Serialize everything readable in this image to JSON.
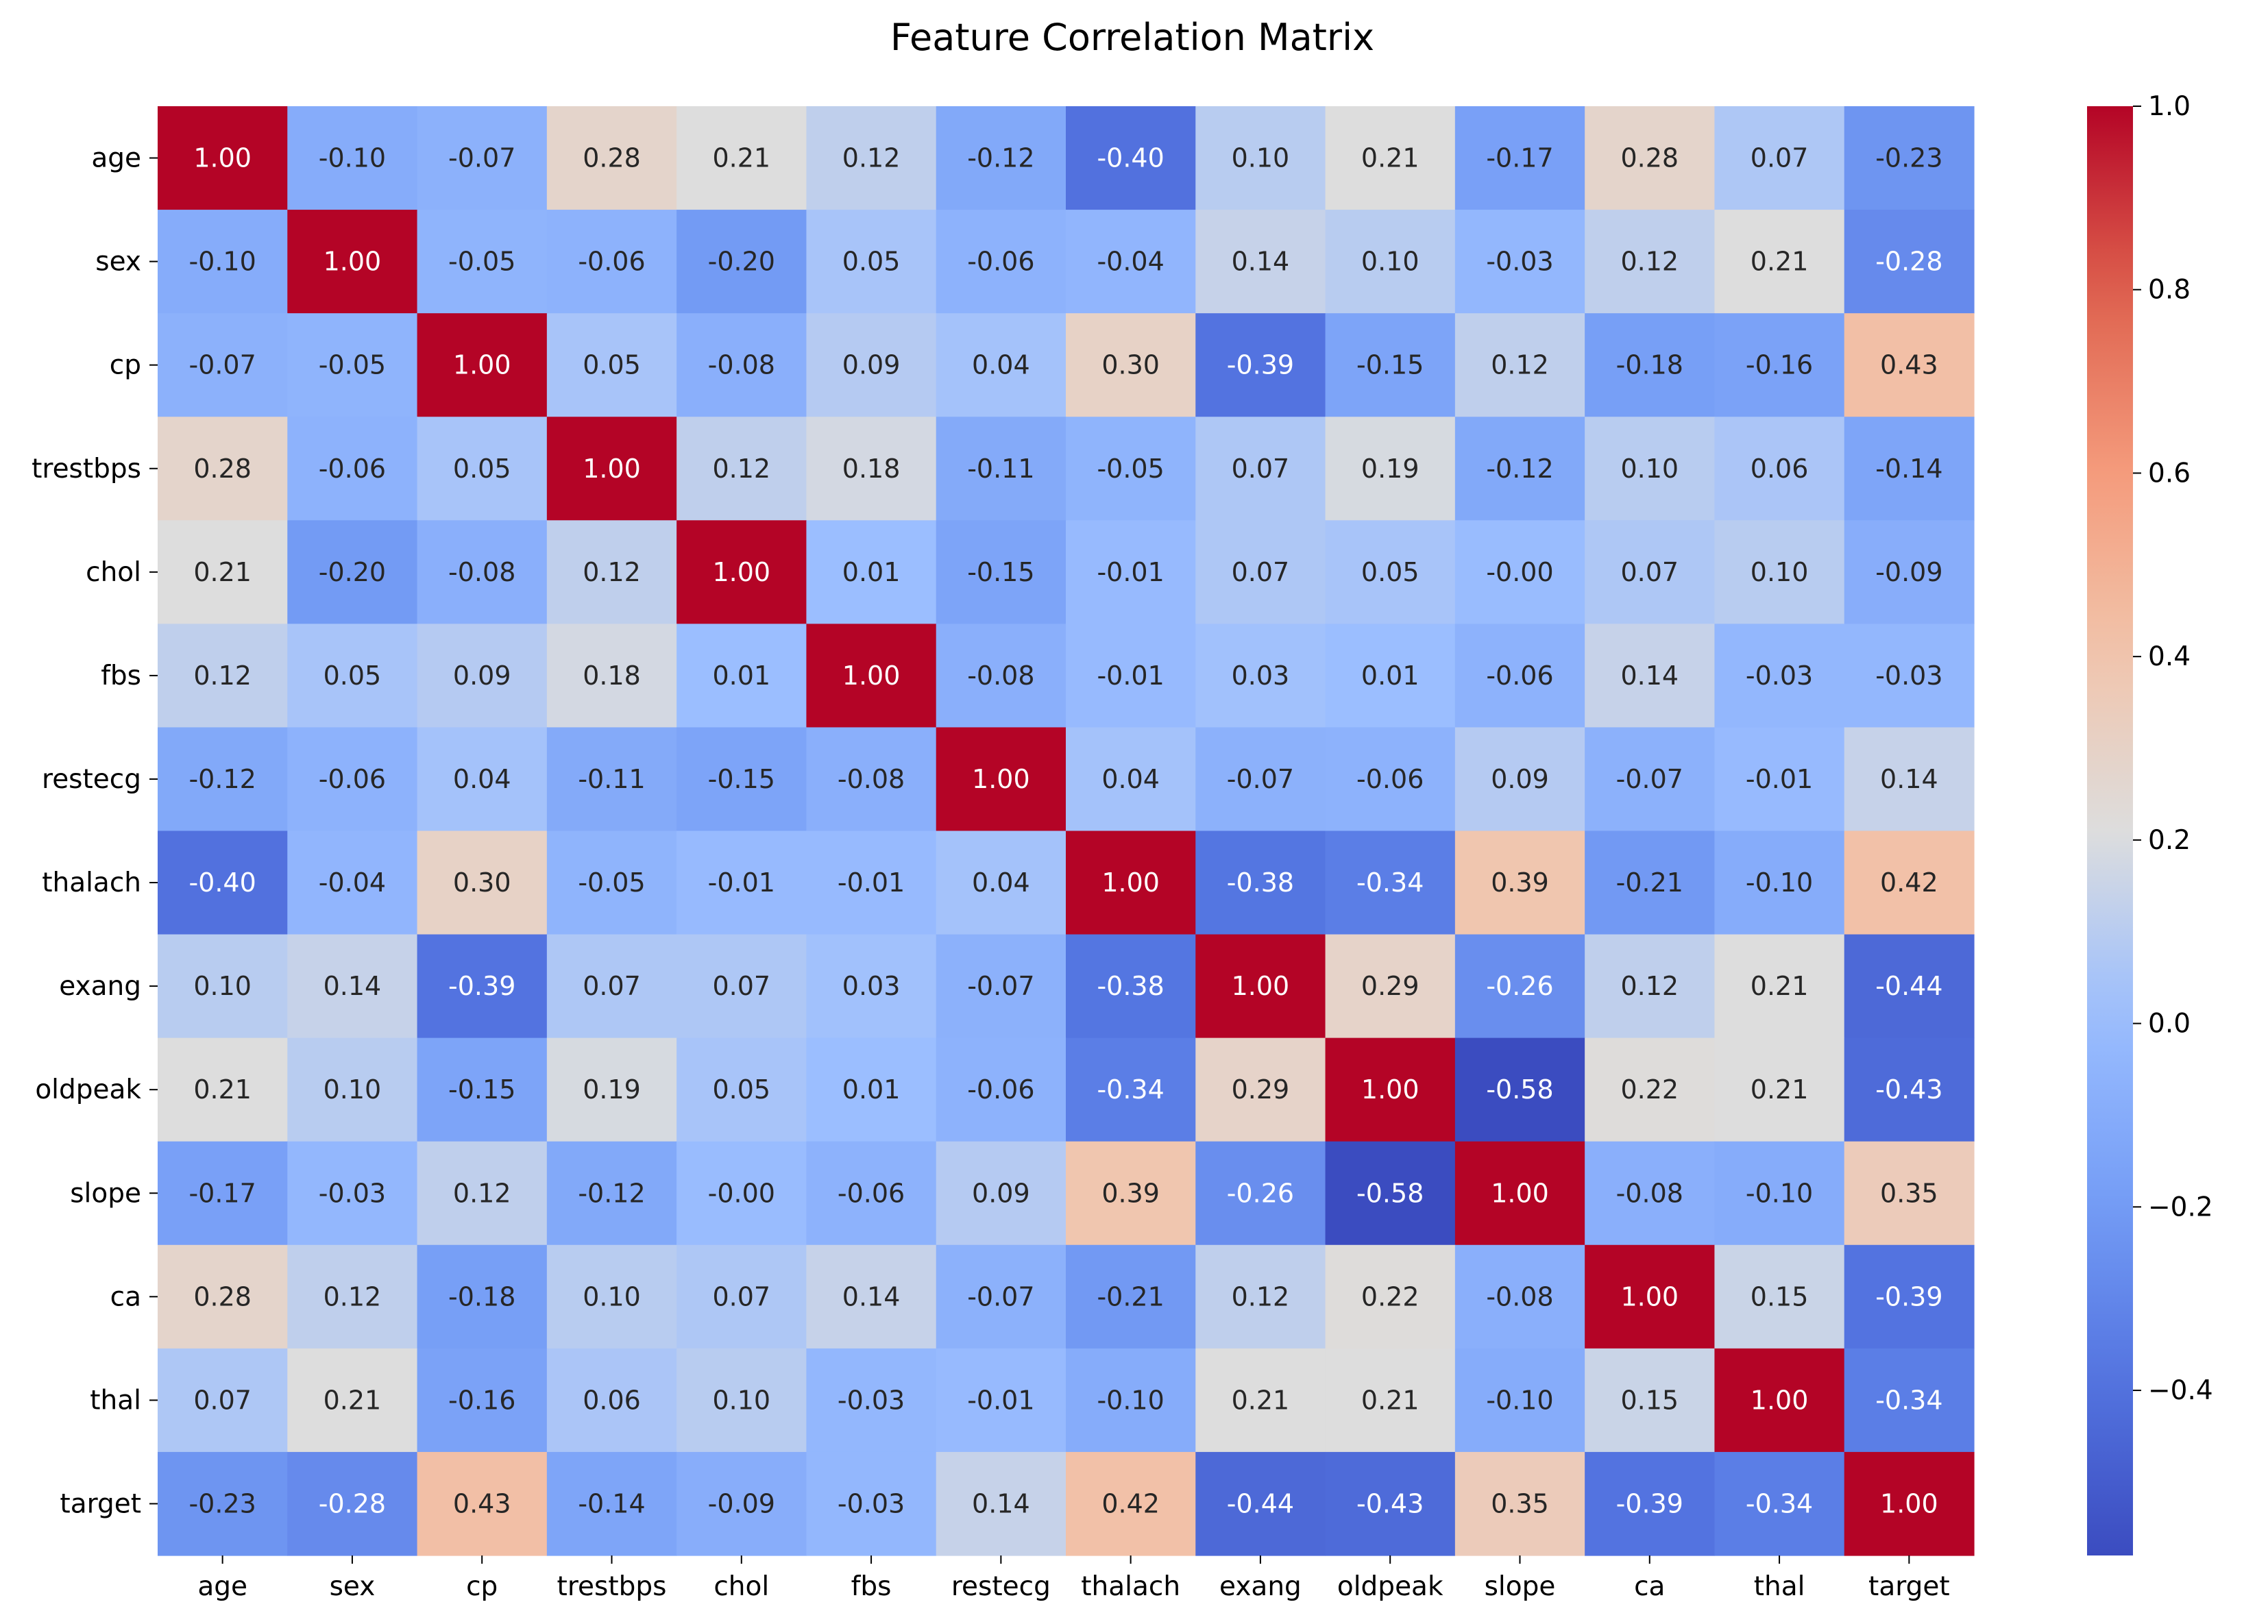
{
  "chart_data": {
    "type": "heatmap",
    "title": "Feature Correlation Matrix",
    "rows": [
      "age",
      "sex",
      "cp",
      "trestbps",
      "chol",
      "fbs",
      "restecg",
      "thalach",
      "exang",
      "oldpeak",
      "slope",
      "ca",
      "thal",
      "target"
    ],
    "columns": [
      "age",
      "sex",
      "cp",
      "trestbps",
      "chol",
      "fbs",
      "restecg",
      "thalach",
      "exang",
      "oldpeak",
      "slope",
      "ca",
      "thal",
      "target"
    ],
    "values": [
      [
        1.0,
        -0.1,
        -0.07,
        0.28,
        0.21,
        0.12,
        -0.12,
        -0.4,
        0.1,
        0.21,
        -0.17,
        0.28,
        0.07,
        -0.23
      ],
      [
        -0.1,
        1.0,
        -0.05,
        -0.06,
        -0.2,
        0.05,
        -0.06,
        -0.04,
        0.14,
        0.1,
        -0.03,
        0.12,
        0.21,
        -0.28
      ],
      [
        -0.07,
        -0.05,
        1.0,
        0.05,
        -0.08,
        0.09,
        0.04,
        0.3,
        -0.39,
        -0.15,
        0.12,
        -0.18,
        -0.16,
        0.43
      ],
      [
        0.28,
        -0.06,
        0.05,
        1.0,
        0.12,
        0.18,
        -0.11,
        -0.05,
        0.07,
        0.19,
        -0.12,
        0.1,
        0.06,
        -0.14
      ],
      [
        0.21,
        -0.2,
        -0.08,
        0.12,
        1.0,
        0.01,
        -0.15,
        -0.01,
        0.07,
        0.05,
        -0.0,
        0.07,
        0.1,
        -0.09
      ],
      [
        0.12,
        0.05,
        0.09,
        0.18,
        0.01,
        1.0,
        -0.08,
        -0.01,
        0.03,
        0.01,
        -0.06,
        0.14,
        -0.03,
        -0.03
      ],
      [
        -0.12,
        -0.06,
        0.04,
        -0.11,
        -0.15,
        -0.08,
        1.0,
        0.04,
        -0.07,
        -0.06,
        0.09,
        -0.07,
        -0.01,
        0.14
      ],
      [
        -0.4,
        -0.04,
        0.3,
        -0.05,
        -0.01,
        -0.01,
        0.04,
        1.0,
        -0.38,
        -0.34,
        0.39,
        -0.21,
        -0.1,
        0.42
      ],
      [
        0.1,
        0.14,
        -0.39,
        0.07,
        0.07,
        0.03,
        -0.07,
        -0.38,
        1.0,
        0.29,
        -0.26,
        0.12,
        0.21,
        -0.44
      ],
      [
        0.21,
        0.1,
        -0.15,
        0.19,
        0.05,
        0.01,
        -0.06,
        -0.34,
        0.29,
        1.0,
        -0.58,
        0.22,
        0.21,
        -0.43
      ],
      [
        -0.17,
        -0.03,
        0.12,
        -0.12,
        -0.0,
        -0.06,
        0.09,
        0.39,
        -0.26,
        -0.58,
        1.0,
        -0.08,
        -0.1,
        0.35
      ],
      [
        0.28,
        0.12,
        -0.18,
        0.1,
        0.07,
        0.14,
        -0.07,
        -0.21,
        0.12,
        0.22,
        -0.08,
        1.0,
        0.15,
        -0.39
      ],
      [
        0.07,
        0.21,
        -0.16,
        0.06,
        0.1,
        -0.03,
        -0.01,
        -0.1,
        0.21,
        0.21,
        -0.1,
        0.15,
        1.0,
        -0.34
      ],
      [
        -0.23,
        -0.28,
        0.43,
        -0.14,
        -0.09,
        -0.03,
        0.14,
        0.42,
        -0.44,
        -0.43,
        0.35,
        -0.39,
        -0.34,
        1.0
      ]
    ],
    "value_format": "0.00",
    "colormap": "coolwarm",
    "colorbar": {
      "range": [
        -0.58,
        1.0
      ],
      "ticks": [
        1.0,
        0.8,
        0.6,
        0.4,
        0.2,
        0.0,
        -0.2,
        -0.4
      ],
      "tick_labels": [
        "1.0",
        "0.8",
        "0.6",
        "0.4",
        "0.2",
        "0.0",
        "−0.2",
        "−0.4"
      ]
    },
    "grid": false
  }
}
